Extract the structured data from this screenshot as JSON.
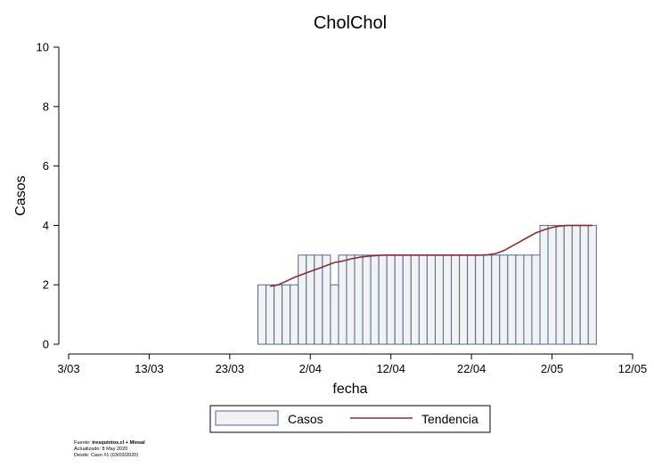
{
  "chart_data": {
    "type": "bar",
    "title": "CholChol",
    "xlabel": "fecha",
    "ylabel": "Casos",
    "ylim": [
      0,
      10
    ],
    "yticks": [
      0,
      2,
      4,
      6,
      8,
      10
    ],
    "xlim": [
      "2020-03-03",
      "2020-05-12"
    ],
    "xticks": [
      {
        "date": "2020-03-03",
        "label": "3/03"
      },
      {
        "date": "2020-03-13",
        "label": "13/03"
      },
      {
        "date": "2020-03-23",
        "label": "23/03"
      },
      {
        "date": "2020-04-02",
        "label": "2/04"
      },
      {
        "date": "2020-04-12",
        "label": "12/04"
      },
      {
        "date": "2020-04-22",
        "label": "22/04"
      },
      {
        "date": "2020-05-02",
        "label": "2/05"
      },
      {
        "date": "2020-05-12",
        "label": "12/05"
      }
    ],
    "legend_position": "bottom",
    "series": [
      {
        "name": "Casos",
        "type": "bar",
        "color": "#f2f2f2",
        "edge_color": "#4a6a92",
        "x": [
          "2020-03-27",
          "2020-03-28",
          "2020-03-29",
          "2020-03-30",
          "2020-03-31",
          "2020-04-01",
          "2020-04-02",
          "2020-04-03",
          "2020-04-04",
          "2020-04-05",
          "2020-04-06",
          "2020-04-07",
          "2020-04-08",
          "2020-04-09",
          "2020-04-10",
          "2020-04-11",
          "2020-04-12",
          "2020-04-13",
          "2020-04-14",
          "2020-04-15",
          "2020-04-16",
          "2020-04-17",
          "2020-04-18",
          "2020-04-19",
          "2020-04-20",
          "2020-04-21",
          "2020-04-22",
          "2020-04-23",
          "2020-04-24",
          "2020-04-25",
          "2020-04-26",
          "2020-04-27",
          "2020-04-28",
          "2020-04-29",
          "2020-04-30",
          "2020-05-01",
          "2020-05-02",
          "2020-05-03",
          "2020-05-04",
          "2020-05-05",
          "2020-05-06",
          "2020-05-07"
        ],
        "values": [
          2,
          2,
          2,
          2,
          2,
          3,
          3,
          3,
          3,
          2,
          3,
          3,
          3,
          3,
          3,
          3,
          3,
          3,
          3,
          3,
          3,
          3,
          3,
          3,
          3,
          3,
          3,
          3,
          3,
          3,
          3,
          3,
          3,
          3,
          3,
          4,
          4,
          4,
          4,
          4,
          4,
          4
        ]
      },
      {
        "name": "Tendencia",
        "type": "line",
        "color": "#8b2c35",
        "x": [
          "2020-03-28",
          "2020-03-29",
          "2020-03-30",
          "2020-03-31",
          "2020-04-01",
          "2020-04-02",
          "2020-04-03",
          "2020-04-04",
          "2020-04-05",
          "2020-04-06",
          "2020-04-07",
          "2020-04-08",
          "2020-04-09",
          "2020-04-10",
          "2020-04-11",
          "2020-04-12",
          "2020-04-13",
          "2020-04-14",
          "2020-04-15",
          "2020-04-16",
          "2020-04-17",
          "2020-04-18",
          "2020-04-19",
          "2020-04-20",
          "2020-04-21",
          "2020-04-22",
          "2020-04-23",
          "2020-04-24",
          "2020-04-25",
          "2020-04-26",
          "2020-04-27",
          "2020-04-28",
          "2020-04-29",
          "2020-04-30",
          "2020-05-01",
          "2020-05-02",
          "2020-05-03",
          "2020-05-04",
          "2020-05-05",
          "2020-05-06",
          "2020-05-07"
        ],
        "values": [
          1.95,
          2.0,
          2.12,
          2.25,
          2.35,
          2.45,
          2.55,
          2.65,
          2.75,
          2.8,
          2.87,
          2.92,
          2.96,
          2.98,
          3.0,
          3.0,
          3.0,
          3.0,
          3.0,
          3.0,
          3.0,
          3.0,
          3.0,
          3.0,
          3.0,
          3.0,
          3.0,
          3.01,
          3.05,
          3.15,
          3.3,
          3.45,
          3.6,
          3.75,
          3.85,
          3.93,
          3.98,
          4.0,
          4.0,
          4.0,
          4.0
        ]
      }
    ]
  },
  "footnote": {
    "line1_prefix": "Fuente: ",
    "line1_bold": "tresquintos.cl + Minsal",
    "line2": "Actualizado: 8 May 2020",
    "line3": "Desde: Caso #1  (03/03/2020)"
  }
}
